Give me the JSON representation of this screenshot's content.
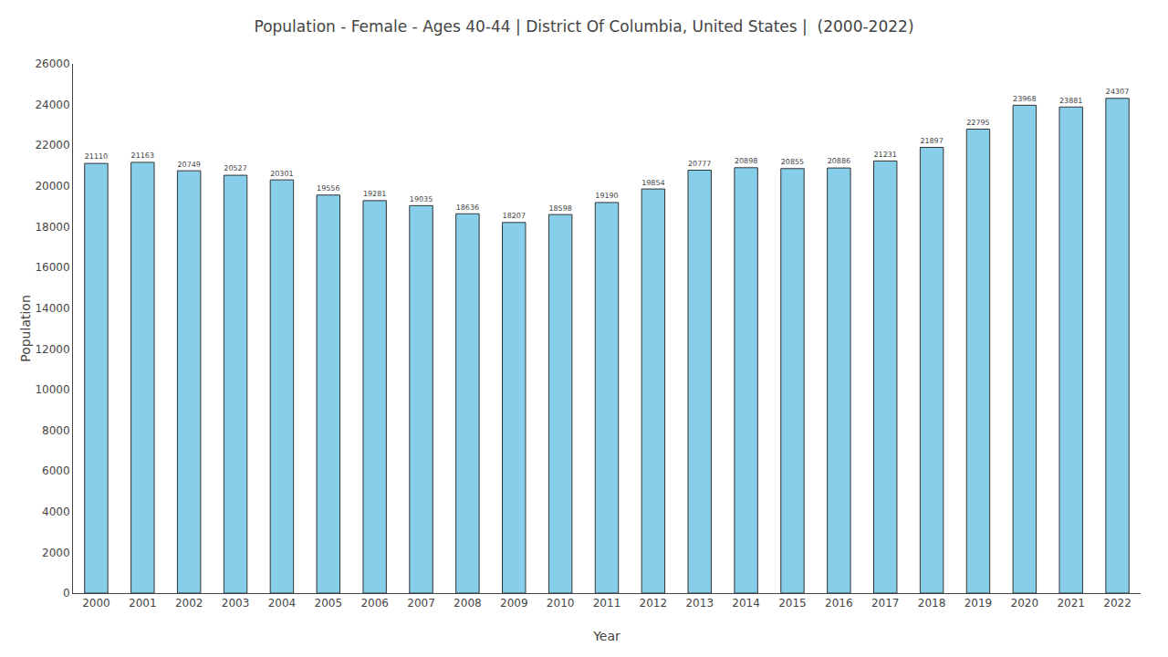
{
  "chart_data": {
    "type": "bar",
    "title": "Population - Female - Ages 40-44 | District Of Columbia, United States |  (2000-2022)",
    "xlabel": "Year",
    "ylabel": "Population",
    "categories": [
      "2000",
      "2001",
      "2002",
      "2003",
      "2004",
      "2005",
      "2006",
      "2007",
      "2008",
      "2009",
      "2010",
      "2011",
      "2012",
      "2013",
      "2014",
      "2015",
      "2016",
      "2017",
      "2018",
      "2019",
      "2020",
      "2021",
      "2022"
    ],
    "values": [
      21110,
      21163,
      20749,
      20527,
      20301,
      19556,
      19281,
      19035,
      18636,
      18207,
      18598,
      19190,
      19854,
      20777,
      20898,
      20855,
      20886,
      21231,
      21897,
      22795,
      23968,
      23881,
      24307
    ],
    "color": "#87ceeb",
    "ylim": [
      0,
      26000
    ],
    "yticks": [
      0,
      2000,
      4000,
      6000,
      8000,
      10000,
      12000,
      14000,
      16000,
      18000,
      20000,
      22000,
      24000,
      26000
    ],
    "grid": false,
    "data_labels": true
  }
}
